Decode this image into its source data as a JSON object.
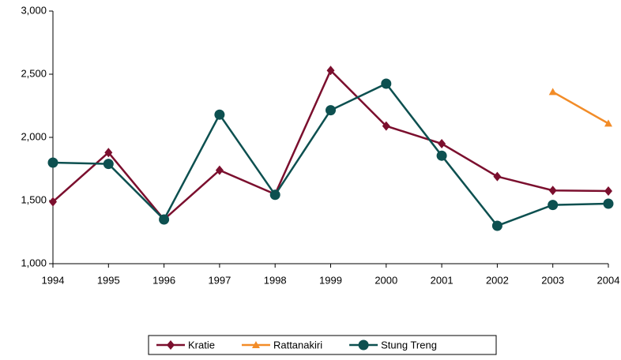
{
  "chart_data": {
    "type": "line",
    "categories": [
      "1994",
      "1995",
      "1996",
      "1997",
      "1998",
      "1999",
      "2000",
      "2001",
      "2002",
      "2003",
      "2004"
    ],
    "series": [
      {
        "name": "Kratie",
        "color": "#7b0f2e",
        "marker": "diamond",
        "values": [
          1490,
          1880,
          1350,
          1740,
          1550,
          2530,
          2090,
          1950,
          1690,
          1580,
          1575
        ]
      },
      {
        "name": "Rattanakiri",
        "color": "#f28c28",
        "marker": "triangle",
        "values": [
          null,
          null,
          null,
          null,
          null,
          null,
          null,
          null,
          null,
          2360,
          2110
        ]
      },
      {
        "name": "Stung Treng",
        "color": "#0d5050",
        "marker": "circle",
        "values": [
          1800,
          1790,
          1350,
          2180,
          1545,
          2215,
          2425,
          1855,
          1300,
          1465,
          1475
        ]
      }
    ],
    "ylim": [
      1000,
      3000
    ],
    "yticks": [
      {
        "value": 1000,
        "label": "1,000"
      },
      {
        "value": 1500,
        "label": "1,500"
      },
      {
        "value": 2000,
        "label": "2,000"
      },
      {
        "value": 2500,
        "label": "2,500"
      },
      {
        "value": 3000,
        "label": "3,000"
      }
    ],
    "grid": false,
    "legend": "bottom"
  }
}
